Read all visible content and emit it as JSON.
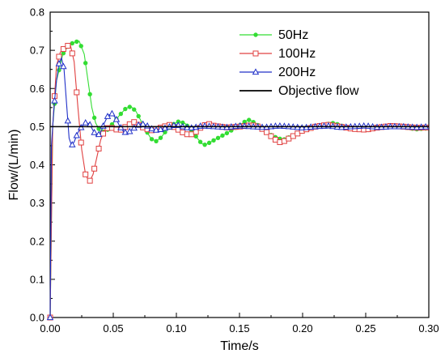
{
  "chart_data": {
    "type": "line",
    "xlabel": "Time/s",
    "ylabel": "Flow/(L/min)",
    "xlim": [
      0,
      0.3
    ],
    "ylim": [
      0,
      0.8
    ],
    "xticks": [
      "0.00",
      "0.05",
      "0.10",
      "0.15",
      "0.20",
      "0.25",
      "0.30"
    ],
    "yticks": [
      "0.0",
      "0.1",
      "0.2",
      "0.3",
      "0.4",
      "0.5",
      "0.6",
      "0.7",
      "0.8"
    ],
    "legend_position": "top-right",
    "series": [
      {
        "name": "50Hz",
        "color": "#33dd33",
        "marker": "dot",
        "points": [
          [
            0,
            0
          ],
          [
            0.002,
            0.5
          ],
          [
            0.005,
            0.62
          ],
          [
            0.01,
            0.69
          ],
          [
            0.015,
            0.715
          ],
          [
            0.02,
            0.722
          ],
          [
            0.023,
            0.724
          ],
          [
            0.027,
            0.69
          ],
          [
            0.03,
            0.62
          ],
          [
            0.033,
            0.55
          ],
          [
            0.036,
            0.51
          ],
          [
            0.04,
            0.485
          ],
          [
            0.045,
            0.49
          ],
          [
            0.05,
            0.51
          ],
          [
            0.055,
            0.53
          ],
          [
            0.06,
            0.548
          ],
          [
            0.064,
            0.553
          ],
          [
            0.068,
            0.54
          ],
          [
            0.072,
            0.515
          ],
          [
            0.076,
            0.49
          ],
          [
            0.08,
            0.468
          ],
          [
            0.084,
            0.462
          ],
          [
            0.088,
            0.472
          ],
          [
            0.092,
            0.49
          ],
          [
            0.097,
            0.505
          ],
          [
            0.102,
            0.514
          ],
          [
            0.107,
            0.508
          ],
          [
            0.112,
            0.49
          ],
          [
            0.117,
            0.468
          ],
          [
            0.12,
            0.456
          ],
          [
            0.123,
            0.452
          ],
          [
            0.13,
            0.465
          ],
          [
            0.14,
            0.483
          ],
          [
            0.15,
            0.503
          ],
          [
            0.155,
            0.515
          ],
          [
            0.158,
            0.518
          ],
          [
            0.163,
            0.508
          ],
          [
            0.17,
            0.49
          ],
          [
            0.175,
            0.478
          ],
          [
            0.18,
            0.47
          ],
          [
            0.185,
            0.466
          ],
          [
            0.19,
            0.473
          ],
          [
            0.2,
            0.488
          ],
          [
            0.21,
            0.5
          ],
          [
            0.22,
            0.507
          ],
          [
            0.225,
            0.51
          ],
          [
            0.23,
            0.503
          ],
          [
            0.24,
            0.494
          ],
          [
            0.25,
            0.49
          ],
          [
            0.26,
            0.497
          ],
          [
            0.27,
            0.5
          ],
          [
            0.28,
            0.499
          ],
          [
            0.29,
            0.493
          ],
          [
            0.3,
            0.496
          ]
        ]
      },
      {
        "name": "100Hz",
        "color": "#e04040",
        "marker": "square",
        "points": [
          [
            0,
            0
          ],
          [
            0.002,
            0.5
          ],
          [
            0.005,
            0.66
          ],
          [
            0.008,
            0.695
          ],
          [
            0.011,
            0.705
          ],
          [
            0.014,
            0.712
          ],
          [
            0.016,
            0.714
          ],
          [
            0.019,
            0.67
          ],
          [
            0.022,
            0.55
          ],
          [
            0.025,
            0.44
          ],
          [
            0.028,
            0.375
          ],
          [
            0.031,
            0.355
          ],
          [
            0.034,
            0.375
          ],
          [
            0.037,
            0.42
          ],
          [
            0.04,
            0.465
          ],
          [
            0.043,
            0.49
          ],
          [
            0.047,
            0.5
          ],
          [
            0.05,
            0.495
          ],
          [
            0.055,
            0.49
          ],
          [
            0.06,
            0.5
          ],
          [
            0.066,
            0.513
          ],
          [
            0.07,
            0.505
          ],
          [
            0.075,
            0.495
          ],
          [
            0.08,
            0.49
          ],
          [
            0.085,
            0.495
          ],
          [
            0.09,
            0.5
          ],
          [
            0.095,
            0.505
          ],
          [
            0.1,
            0.495
          ],
          [
            0.105,
            0.485
          ],
          [
            0.11,
            0.478
          ],
          [
            0.114,
            0.482
          ],
          [
            0.12,
            0.5
          ],
          [
            0.125,
            0.508
          ],
          [
            0.13,
            0.502
          ],
          [
            0.14,
            0.498
          ],
          [
            0.15,
            0.5
          ],
          [
            0.16,
            0.504
          ],
          [
            0.165,
            0.5
          ],
          [
            0.17,
            0.49
          ],
          [
            0.175,
            0.475
          ],
          [
            0.18,
            0.462
          ],
          [
            0.183,
            0.458
          ],
          [
            0.187,
            0.465
          ],
          [
            0.195,
            0.48
          ],
          [
            0.2,
            0.49
          ],
          [
            0.21,
            0.5
          ],
          [
            0.22,
            0.505
          ],
          [
            0.23,
            0.5
          ],
          [
            0.24,
            0.494
          ],
          [
            0.25,
            0.492
          ],
          [
            0.26,
            0.498
          ],
          [
            0.27,
            0.502
          ],
          [
            0.28,
            0.5
          ],
          [
            0.29,
            0.497
          ],
          [
            0.3,
            0.498
          ]
        ]
      },
      {
        "name": "200Hz",
        "color": "#2030c8",
        "marker": "triangle",
        "points": [
          [
            0,
            0
          ],
          [
            0.001,
            0.45
          ],
          [
            0.003,
            0.55
          ],
          [
            0.005,
            0.62
          ],
          [
            0.007,
            0.665
          ],
          [
            0.009,
            0.68
          ],
          [
            0.011,
            0.65
          ],
          [
            0.013,
            0.56
          ],
          [
            0.015,
            0.47
          ],
          [
            0.017,
            0.45
          ],
          [
            0.019,
            0.46
          ],
          [
            0.022,
            0.485
          ],
          [
            0.025,
            0.5
          ],
          [
            0.028,
            0.51
          ],
          [
            0.031,
            0.508
          ],
          [
            0.034,
            0.49
          ],
          [
            0.037,
            0.474
          ],
          [
            0.04,
            0.485
          ],
          [
            0.043,
            0.51
          ],
          [
            0.046,
            0.53
          ],
          [
            0.049,
            0.534
          ],
          [
            0.052,
            0.522
          ],
          [
            0.055,
            0.502
          ],
          [
            0.058,
            0.488
          ],
          [
            0.061,
            0.482
          ],
          [
            0.064,
            0.49
          ],
          [
            0.068,
            0.5
          ],
          [
            0.072,
            0.508
          ],
          [
            0.076,
            0.504
          ],
          [
            0.08,
            0.495
          ],
          [
            0.085,
            0.49
          ],
          [
            0.09,
            0.495
          ],
          [
            0.095,
            0.5
          ],
          [
            0.1,
            0.505
          ],
          [
            0.105,
            0.5
          ],
          [
            0.11,
            0.496
          ],
          [
            0.115,
            0.498
          ],
          [
            0.12,
            0.502
          ],
          [
            0.13,
            0.5
          ],
          [
            0.14,
            0.498
          ],
          [
            0.15,
            0.502
          ],
          [
            0.16,
            0.5
          ],
          [
            0.17,
            0.498
          ],
          [
            0.18,
            0.502
          ],
          [
            0.19,
            0.5
          ],
          [
            0.2,
            0.497
          ],
          [
            0.21,
            0.5
          ],
          [
            0.22,
            0.502
          ],
          [
            0.23,
            0.498
          ],
          [
            0.24,
            0.5
          ],
          [
            0.25,
            0.502
          ],
          [
            0.26,
            0.498
          ],
          [
            0.27,
            0.5
          ],
          [
            0.28,
            0.5
          ],
          [
            0.29,
            0.498
          ],
          [
            0.3,
            0.5
          ]
        ]
      },
      {
        "name": "Objective flow",
        "color": "#000000",
        "marker": "none",
        "points": [
          [
            0,
            0.5
          ],
          [
            0.3,
            0.5
          ]
        ]
      }
    ]
  }
}
